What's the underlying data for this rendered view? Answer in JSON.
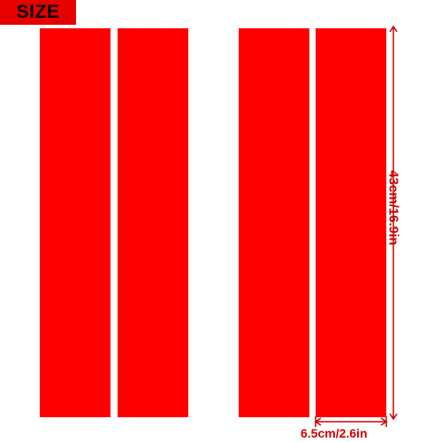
{
  "badge": {
    "label": "SIZE"
  },
  "strips": {
    "count": 4,
    "color": "#ff0000"
  },
  "dimensions": {
    "length": "43cm/16.9in",
    "width": "6.5cm/2.6in",
    "color": "#cc0000"
  },
  "colors": {
    "badge_bg": "#e60000",
    "badge_text": "#000000",
    "background": "#ffffff"
  }
}
